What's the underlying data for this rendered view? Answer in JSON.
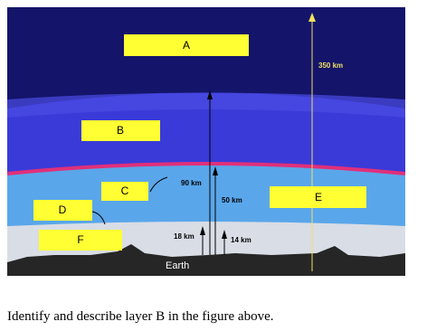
{
  "diagram": {
    "layers": [
      {
        "label": "A"
      },
      {
        "label": "B"
      },
      {
        "label": "C"
      },
      {
        "label": "D"
      },
      {
        "label": "E"
      },
      {
        "label": "F"
      }
    ],
    "annotations": [
      "350 km",
      "90 km",
      "50 km",
      "18 km",
      "14 km"
    ],
    "ground": "Earth"
  },
  "question": "Identify and describe layer B in the figure above."
}
